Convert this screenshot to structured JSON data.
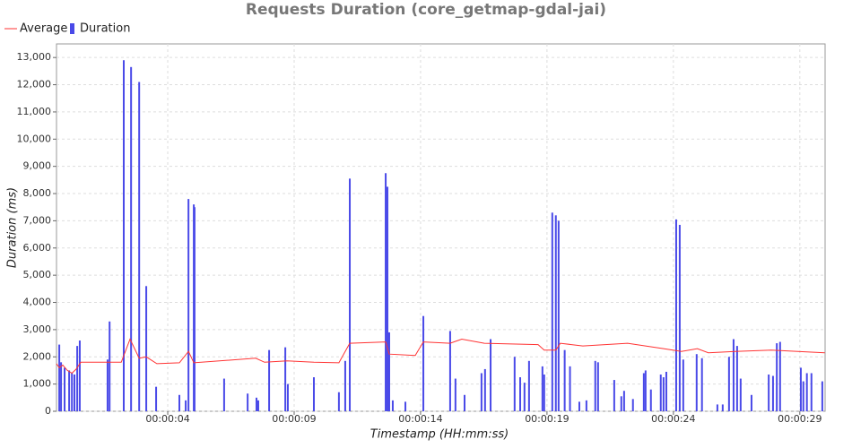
{
  "chart_data": {
    "type": "bar",
    "title": "Requests Duration (core_getmap-gdal-jai)",
    "x_label": "Timestamp (HH:mm:ss)",
    "y_label": "Duration (ms)",
    "xlim": [
      -0.4,
      30
    ],
    "ylim": [
      0,
      13500
    ],
    "xticks": [
      {
        "value": 4,
        "label": "00:00:04"
      },
      {
        "value": 9,
        "label": "00:00:09"
      },
      {
        "value": 14,
        "label": "00:00:14"
      },
      {
        "value": 19,
        "label": "00:00:19"
      },
      {
        "value": 24,
        "label": "00:00:24"
      },
      {
        "value": 29,
        "label": "00:00:29"
      }
    ],
    "yticks": [
      0,
      {
        "value": 1000,
        "label": "1,000"
      },
      {
        "value": 2000,
        "label": "2,000"
      },
      {
        "value": 3000,
        "label": "3,000"
      },
      {
        "value": 4000,
        "label": "4,000"
      },
      {
        "value": 5000,
        "label": "5,000"
      },
      {
        "value": 6000,
        "label": "6,000"
      },
      {
        "value": 7000,
        "label": "7,000"
      },
      {
        "value": 8000,
        "label": "8,000"
      },
      {
        "value": 9000,
        "label": "9,000"
      },
      {
        "value": 10000,
        "label": "10,000"
      },
      {
        "value": 11000,
        "label": "11,000"
      },
      {
        "value": 12000,
        "label": "12,000"
      },
      {
        "value": 13000,
        "label": "13,000"
      }
    ],
    "grid": true,
    "series": [
      {
        "name": "Average",
        "type": "line",
        "color": "#ff3333",
        "x": [
          -0.4,
          -0.29,
          -0.15,
          0.03,
          0.21,
          0.38,
          0.56,
          1.62,
          2.16,
          2.51,
          2.87,
          3.15,
          3.57,
          4.46,
          4.82,
          5.03,
          7.48,
          7.83,
          8.72,
          9.78,
          10.77,
          11.02,
          11.2,
          12.62,
          12.76,
          13.79,
          14.11,
          15.17,
          15.63,
          16.52,
          18.65,
          18.89,
          19.35,
          19.53,
          20.42,
          22.19,
          22.9,
          23.61,
          24.32,
          24.95,
          25.38,
          26.44,
          27.87,
          28.93,
          29.99
        ],
        "values": [
          1750,
          1600,
          1700,
          1500,
          1400,
          1550,
          1800,
          1800,
          1800,
          2650,
          1950,
          2000,
          1750,
          1780,
          2200,
          1780,
          1950,
          1800,
          1850,
          1800,
          1780,
          2200,
          2500,
          2550,
          2100,
          2050,
          2550,
          2500,
          2650,
          2500,
          2450,
          2250,
          2250,
          2500,
          2400,
          2500,
          2400,
          2300,
          2200,
          2300,
          2150,
          2200,
          2250,
          2200,
          2150
        ]
      },
      {
        "name": "Duration",
        "type": "bar",
        "color": "#4a4ae8",
        "x": [
          -0.29,
          -0.22,
          -0.08,
          0.1,
          0.21,
          0.31,
          0.42,
          0.52,
          1.62,
          1.7,
          2.26,
          2.55,
          2.87,
          3.15,
          3.54,
          4.46,
          4.71,
          4.82,
          5.03,
          5.06,
          6.23,
          7.16,
          7.51,
          7.58,
          8.01,
          8.65,
          8.75,
          9.78,
          10.77,
          11.02,
          11.2,
          12.62,
          12.69,
          12.76,
          12.9,
          13.4,
          14.11,
          15.17,
          15.38,
          15.74,
          16.41,
          16.55,
          16.77,
          17.72,
          17.94,
          18.11,
          18.29,
          18.82,
          18.89,
          19.21,
          19.35,
          19.46,
          19.7,
          19.91,
          20.28,
          20.56,
          20.91,
          21.02,
          21.66,
          21.94,
          22.05,
          22.4,
          22.83,
          22.9,
          23.11,
          23.5,
          23.61,
          23.72,
          24.11,
          24.25,
          24.39,
          24.92,
          25.13,
          25.74,
          25.95,
          26.2,
          26.38,
          26.52,
          26.66,
          27.09,
          27.77,
          27.94,
          28.09,
          28.22,
          29.04,
          29.14,
          29.28,
          29.46,
          29.89
        ],
        "values": [
          2450,
          1800,
          1600,
          1500,
          1400,
          1350,
          2400,
          2600,
          1900,
          3300,
          12900,
          12650,
          12100,
          4600,
          900,
          600,
          400,
          7800,
          7600,
          7500,
          1200,
          650,
          500,
          400,
          2250,
          2350,
          1000,
          1250,
          700,
          1850,
          8550,
          8750,
          8250,
          2900,
          400,
          350,
          3500,
          2950,
          1200,
          600,
          1400,
          1550,
          2650,
          2000,
          1250,
          1050,
          1850,
          1650,
          1350,
          7300,
          7200,
          7000,
          2250,
          1650,
          350,
          400,
          1850,
          1800,
          1150,
          550,
          750,
          450,
          1400,
          1500,
          800,
          1350,
          1250,
          1450,
          7050,
          6850,
          1900,
          2100,
          1950,
          250,
          250,
          2000,
          2650,
          2400,
          1200,
          600,
          1350,
          1300,
          2500,
          2550,
          1600,
          1100,
          1400,
          1400,
          1100
        ]
      }
    ]
  }
}
